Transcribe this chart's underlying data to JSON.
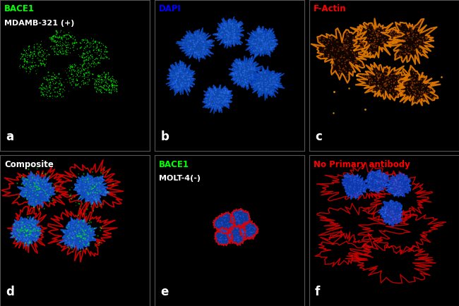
{
  "figsize": [
    6.5,
    4.34
  ],
  "dpi": 100,
  "bg_color": "#000000",
  "panel_labels": [
    "a",
    "b",
    "c",
    "d",
    "e",
    "f"
  ],
  "separator_color": "#888888",
  "label_a": [
    "BACE1",
    "MDAMB-321 (+)"
  ],
  "label_b": [
    "DAPI"
  ],
  "label_c": [
    "F-Actin"
  ],
  "label_d": [
    "Composite"
  ],
  "label_e": [
    "BACE1",
    "MOLT-4(-)"
  ],
  "label_f": [
    "No Primary antibody"
  ],
  "color_green": "#00ff00",
  "color_blue": "#0000ff",
  "color_red": "#ff0000",
  "color_white": "#ffffff",
  "color_orange": "#cc6600"
}
